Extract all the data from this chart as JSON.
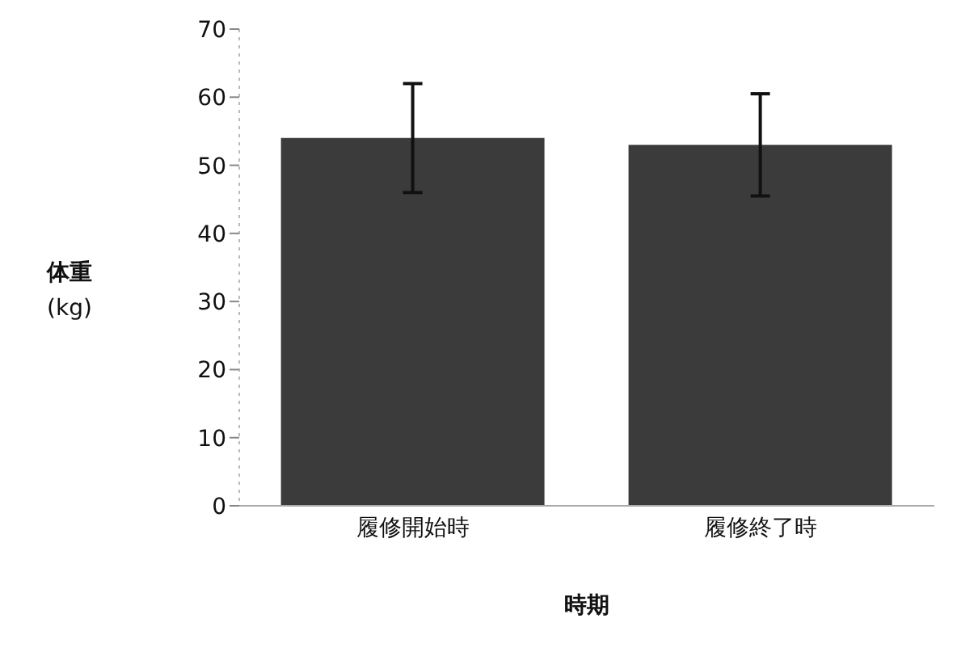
{
  "chart_data": {
    "type": "bar",
    "xlabel": "時期",
    "ylabel": "体重 (kg)",
    "categories": [
      "履修開始時",
      "履修終了時"
    ],
    "values": [
      54,
      53
    ],
    "errors": [
      8,
      7.5
    ],
    "color": "#3b3b3b",
    "ylim": [
      0,
      70
    ],
    "yticks": [
      0,
      10,
      20,
      30,
      40,
      50,
      60,
      70
    ],
    "grid": false,
    "legend": false
  }
}
